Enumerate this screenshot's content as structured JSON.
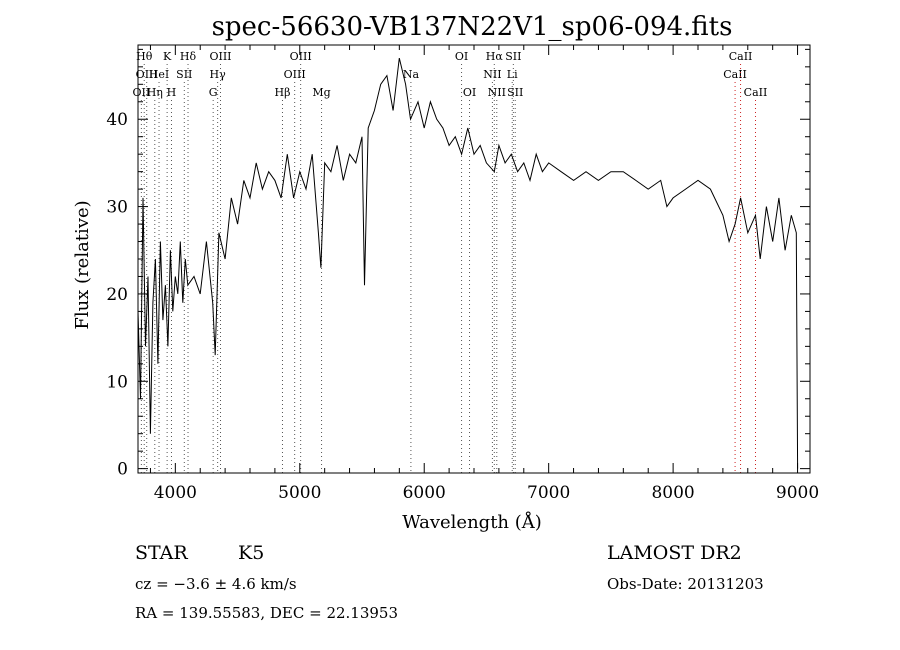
{
  "chart_data": {
    "type": "line",
    "title": "spec-56630-VB137N22V1_sp06-094.fits",
    "xlabel": "Wavelength (Å)",
    "ylabel": "Flux (relative)",
    "xlim": [
      3700,
      9100
    ],
    "ylim": [
      -0.5,
      48.5
    ],
    "xticks": [
      4000,
      5000,
      6000,
      7000,
      8000,
      9000
    ],
    "yticks": [
      0,
      10,
      20,
      30,
      40
    ],
    "grid": false,
    "series": [
      {
        "color": "#000000",
        "x": [
          3700,
          3720,
          3740,
          3760,
          3780,
          3800,
          3820,
          3840,
          3860,
          3880,
          3900,
          3920,
          3940,
          3960,
          3980,
          4000,
          4020,
          4040,
          4060,
          4080,
          4100,
          4150,
          4200,
          4250,
          4300,
          4320,
          4350,
          4400,
          4450,
          4500,
          4550,
          4600,
          4650,
          4700,
          4750,
          4800,
          4850,
          4900,
          4950,
          5000,
          5050,
          5100,
          5150,
          5170,
          5200,
          5250,
          5300,
          5350,
          5400,
          5450,
          5500,
          5520,
          5550,
          5600,
          5650,
          5700,
          5750,
          5800,
          5850,
          5890,
          5950,
          6000,
          6050,
          6100,
          6150,
          6200,
          6250,
          6300,
          6350,
          6400,
          6450,
          6500,
          6563,
          6600,
          6650,
          6700,
          6750,
          6800,
          6850,
          6900,
          6950,
          7000,
          7100,
          7200,
          7300,
          7400,
          7500,
          7600,
          7700,
          7800,
          7900,
          7950,
          8000,
          8100,
          8200,
          8300,
          8400,
          8450,
          8498,
          8542,
          8600,
          8662,
          8700,
          8750,
          8800,
          8850,
          8900,
          8950,
          8990,
          9000
        ],
        "y": [
          18,
          8,
          31,
          14,
          22,
          4,
          19,
          24,
          12,
          26,
          17,
          21,
          14,
          25,
          18,
          22,
          20,
          26,
          19,
          24,
          21,
          22,
          20,
          26,
          19,
          13,
          27,
          24,
          31,
          28,
          33,
          31,
          35,
          32,
          34,
          33,
          31,
          36,
          31,
          34,
          32,
          36,
          27,
          23,
          35,
          34,
          37,
          33,
          36,
          35,
          38,
          21,
          39,
          41,
          44,
          45,
          41,
          47,
          44,
          40,
          42,
          39,
          42,
          40,
          39,
          37,
          38,
          36,
          39,
          36,
          37,
          35,
          34,
          37,
          35,
          36,
          34,
          35,
          33,
          36,
          34,
          35,
          34,
          33,
          34,
          33,
          34,
          34,
          33,
          32,
          33,
          30,
          31,
          32,
          33,
          32,
          29,
          26,
          28,
          31,
          27,
          29,
          24,
          30,
          26,
          31,
          25,
          29,
          27,
          0
        ]
      }
    ],
    "lines": [
      {
        "x": 3727,
        "label": "OII",
        "row": 2,
        "color": "#555555"
      },
      {
        "x": 3750,
        "label": "Hθ",
        "row": 0,
        "color": "#555555"
      },
      {
        "x": 3770,
        "label": "OIII",
        "row": 1,
        "color": "#555555"
      },
      {
        "x": 3835,
        "label": "Hη",
        "row": 2,
        "color": "#555555"
      },
      {
        "x": 3869,
        "label": "HeI",
        "row": 1,
        "color": "#555555"
      },
      {
        "x": 3934,
        "label": "K",
        "row": 0,
        "color": "#555555"
      },
      {
        "x": 3969,
        "label": "H",
        "row": 2,
        "color": "#555555"
      },
      {
        "x": 4072,
        "label": "SII",
        "row": 1,
        "color": "#555555"
      },
      {
        "x": 4102,
        "label": "Hδ",
        "row": 0,
        "color": "#555555"
      },
      {
        "x": 4304,
        "label": "G",
        "row": 2,
        "color": "#555555"
      },
      {
        "x": 4340,
        "label": "Hγ",
        "row": 1,
        "color": "#555555"
      },
      {
        "x": 4363,
        "label": "OIII",
        "row": 0,
        "color": "#555555"
      },
      {
        "x": 4861,
        "label": "Hβ",
        "row": 2,
        "color": "#555555"
      },
      {
        "x": 4959,
        "label": "OIII",
        "row": 1,
        "color": "#555555"
      },
      {
        "x": 5007,
        "label": "OIII",
        "row": 0,
        "color": "#555555"
      },
      {
        "x": 5175,
        "label": "Mg",
        "row": 2,
        "color": "#555555"
      },
      {
        "x": 5893,
        "label": "Na",
        "row": 1,
        "color": "#555555"
      },
      {
        "x": 6300,
        "label": "OI",
        "row": 0,
        "color": "#555555"
      },
      {
        "x": 6364,
        "label": "OI",
        "row": 2,
        "color": "#555555"
      },
      {
        "x": 6548,
        "label": "NII",
        "row": 1,
        "color": "#555555"
      },
      {
        "x": 6563,
        "label": "Hα",
        "row": 0,
        "color": "#555555"
      },
      {
        "x": 6583,
        "label": "NII",
        "row": 2,
        "color": "#555555"
      },
      {
        "x": 6707,
        "label": "Li",
        "row": 1,
        "color": "#555555"
      },
      {
        "x": 6716,
        "label": "SII",
        "row": 0,
        "color": "#555555"
      },
      {
        "x": 6731,
        "label": "SII",
        "row": 2,
        "color": "#555555"
      },
      {
        "x": 8498,
        "label": "CaII",
        "row": 1,
        "color": "#cc2222"
      },
      {
        "x": 8542,
        "label": "CaII",
        "row": 0,
        "color": "#cc2222"
      },
      {
        "x": 8662,
        "label": "CaII",
        "row": 2,
        "color": "#cc2222"
      }
    ]
  },
  "info": {
    "class": "STAR",
    "subclass": "K5",
    "survey": "LAMOST DR2",
    "cz": "cz = −3.6 ± 4.6 km/s",
    "obsdate": "Obs-Date: 20131203",
    "coords": "RA = 139.55583, DEC =  22.13953"
  }
}
